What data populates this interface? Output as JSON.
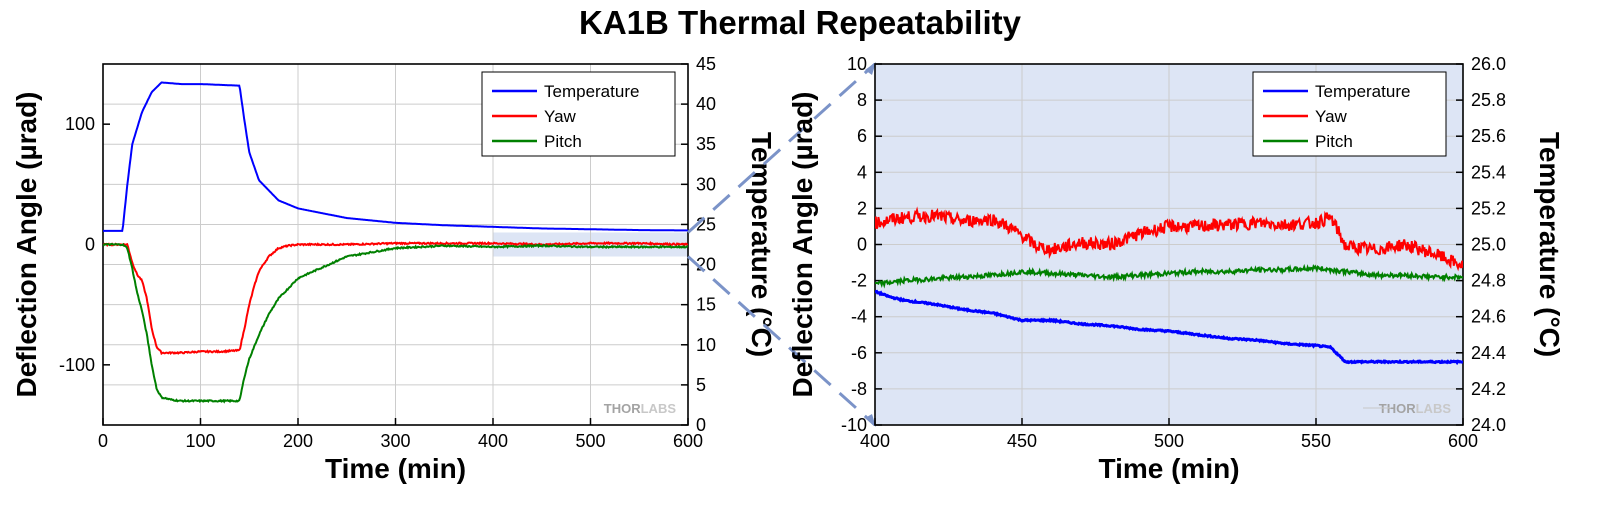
{
  "title": "KA1B Thermal Repeatability",
  "watermark": {
    "a": "THOR",
    "b": "LABS"
  },
  "colors": {
    "temperature": "#0000ff",
    "yaw": "#ff0000",
    "pitch": "#008000",
    "zoom_bg": "#dde5f5",
    "zoom_connector": "#7b93c8",
    "grid": "#cccccc"
  },
  "chart_data": [
    {
      "type": "line",
      "panel": "overview",
      "xlabel": "Time (min)",
      "ylabel": "Deflection Angle (µrad)",
      "y2label": "Temperature (°C)",
      "xlim": [
        0,
        600
      ],
      "ylim": [
        -150,
        150
      ],
      "y2lim": [
        0,
        45
      ],
      "xticks": [
        "0",
        "100",
        "200",
        "300",
        "400",
        "500",
        "600"
      ],
      "yticks": [
        "-100",
        "0",
        "100"
      ],
      "y2ticks": [
        "0",
        "5",
        "10",
        "15",
        "20",
        "25",
        "30",
        "35",
        "40",
        "45"
      ],
      "grid": true,
      "legend_position": "top-right",
      "highlighted_range": {
        "x": [
          400,
          600
        ],
        "y": [
          -10,
          10
        ]
      },
      "series": [
        {
          "name": "Temperature",
          "axis": "right",
          "x": [
            0,
            20,
            25,
            30,
            40,
            50,
            60,
            80,
            100,
            120,
            140,
            145,
            150,
            160,
            180,
            200,
            250,
            300,
            350,
            400,
            450,
            500,
            550,
            600
          ],
          "y": [
            24.2,
            24.2,
            30,
            35,
            39,
            41.5,
            42.7,
            42.5,
            42.5,
            42.4,
            42.3,
            38,
            34,
            30.5,
            28,
            27,
            25.8,
            25.2,
            24.9,
            24.7,
            24.5,
            24.4,
            24.3,
            24.25
          ]
        },
        {
          "name": "Yaw",
          "axis": "left",
          "x": [
            0,
            20,
            25,
            30,
            35,
            40,
            45,
            50,
            55,
            60,
            80,
            100,
            120,
            140,
            145,
            150,
            155,
            160,
            170,
            180,
            190,
            200,
            250,
            300,
            350,
            400,
            450,
            500,
            550,
            600
          ],
          "y": [
            0,
            0,
            0,
            -15,
            -25,
            -30,
            -45,
            -70,
            -85,
            -90,
            -90,
            -89,
            -89,
            -88,
            -70,
            -50,
            -35,
            -22,
            -10,
            -3,
            -1,
            0,
            0,
            1,
            1,
            1,
            0,
            1,
            1,
            0
          ]
        },
        {
          "name": "Pitch",
          "axis": "left",
          "x": [
            0,
            20,
            25,
            30,
            35,
            40,
            45,
            50,
            55,
            60,
            70,
            80,
            100,
            120,
            140,
            145,
            150,
            160,
            170,
            180,
            200,
            250,
            300,
            350,
            400,
            450,
            500,
            550,
            600
          ],
          "y": [
            0,
            0,
            -3,
            -20,
            -40,
            -55,
            -75,
            -100,
            -120,
            -127,
            -129,
            -130,
            -130,
            -130,
            -130,
            -110,
            -95,
            -75,
            -58,
            -45,
            -28,
            -10,
            -3,
            -1,
            -2,
            -1,
            -2,
            -2,
            -2
          ]
        }
      ]
    },
    {
      "type": "line",
      "panel": "zoom",
      "xlabel": "Time (min)",
      "ylabel": "Deflection Angle (µrad)",
      "y2label": "Temperature (°C)",
      "xlim": [
        400,
        600
      ],
      "ylim": [
        -10,
        10
      ],
      "y2lim": [
        24.0,
        26.0
      ],
      "xticks": [
        "400",
        "450",
        "500",
        "550",
        "600"
      ],
      "yticks": [
        "-10",
        "-8",
        "-6",
        "-4",
        "-2",
        "0",
        "2",
        "4",
        "6",
        "8",
        "10"
      ],
      "y2ticks": [
        "24.0",
        "24.2",
        "24.4",
        "24.6",
        "24.8",
        "25.0",
        "25.2",
        "25.4",
        "25.6",
        "25.8",
        "26.0"
      ],
      "grid": true,
      "legend_position": "top-right",
      "series": [
        {
          "name": "Temperature",
          "axis": "right",
          "x": [
            400,
            405,
            410,
            420,
            430,
            440,
            450,
            460,
            470,
            480,
            490,
            500,
            510,
            520,
            530,
            540,
            550,
            555,
            560,
            570,
            580,
            590,
            600
          ],
          "y": [
            24.74,
            24.71,
            24.69,
            24.67,
            24.64,
            24.62,
            24.58,
            24.58,
            24.56,
            24.55,
            24.53,
            24.52,
            24.5,
            24.48,
            24.47,
            24.45,
            24.44,
            24.43,
            24.35,
            24.35,
            24.35,
            24.35,
            24.35
          ]
        },
        {
          "name": "Yaw",
          "axis": "left",
          "x": [
            400,
            410,
            420,
            430,
            440,
            445,
            450,
            455,
            460,
            470,
            480,
            490,
            500,
            510,
            520,
            530,
            540,
            550,
            555,
            558,
            560,
            570,
            580,
            590,
            600
          ],
          "y": [
            1.2,
            1.5,
            1.6,
            1.3,
            1.4,
            1.0,
            0.5,
            -0.1,
            -0.3,
            0.1,
            0.0,
            0.6,
            1.0,
            1.0,
            1.1,
            1.2,
            1.1,
            1.2,
            1.5,
            0.6,
            -0.1,
            -0.3,
            0.0,
            -0.5,
            -1.2
          ]
        },
        {
          "name": "Pitch",
          "axis": "left",
          "x": [
            400,
            410,
            420,
            430,
            440,
            450,
            460,
            470,
            480,
            490,
            500,
            510,
            520,
            530,
            540,
            550,
            560,
            570,
            580,
            590,
            600
          ],
          "y": [
            -2.2,
            -2.0,
            -1.9,
            -1.8,
            -1.7,
            -1.5,
            -1.6,
            -1.7,
            -1.8,
            -1.7,
            -1.6,
            -1.5,
            -1.5,
            -1.4,
            -1.4,
            -1.3,
            -1.5,
            -1.7,
            -1.7,
            -1.8,
            -1.8
          ]
        }
      ]
    }
  ]
}
